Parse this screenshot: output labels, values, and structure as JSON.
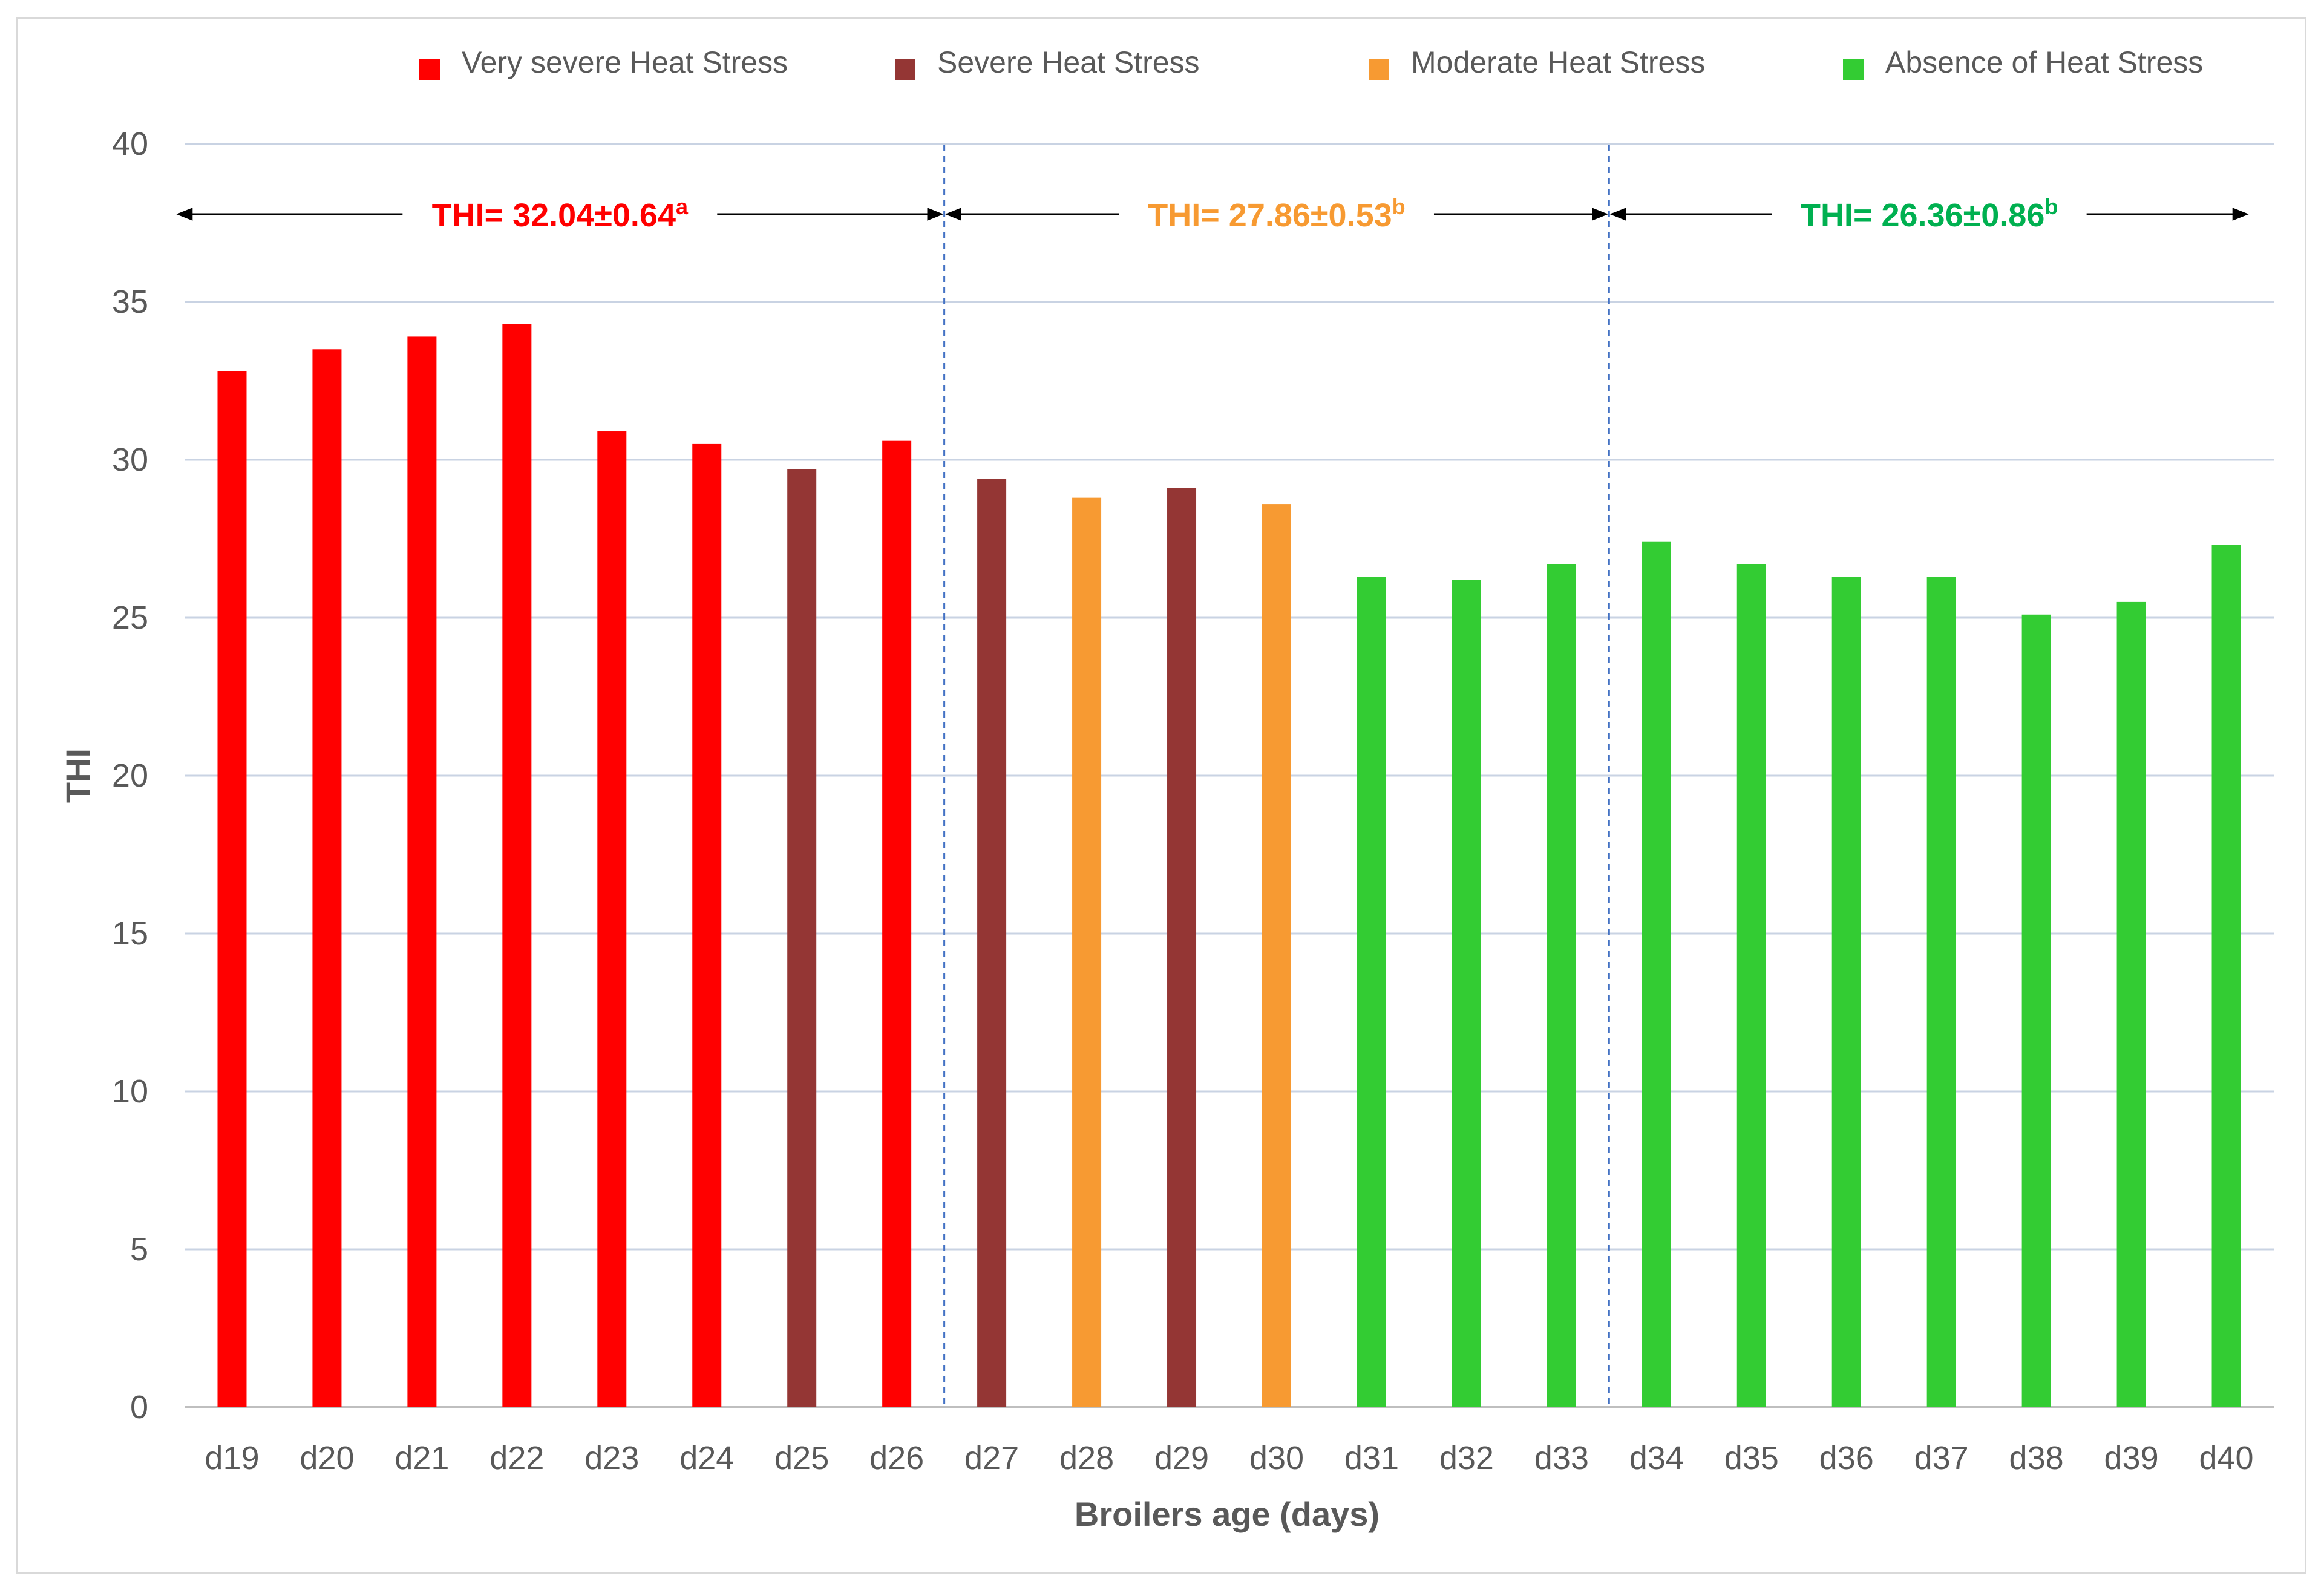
{
  "chart_data": {
    "type": "bar",
    "xlabel": "Broilers age (days)",
    "ylabel": "THI",
    "ylim": [
      0,
      40
    ],
    "yticks": [
      0,
      5,
      10,
      15,
      20,
      25,
      30,
      35,
      40
    ],
    "grid": true,
    "legend_position": "top",
    "categories": [
      "d19",
      "d20",
      "d21",
      "d22",
      "d23",
      "d24",
      "d25",
      "d26",
      "d27",
      "d28",
      "d29",
      "d30",
      "d31",
      "d32",
      "d33",
      "d34",
      "d35",
      "d36",
      "d37",
      "d38",
      "d39",
      "d40"
    ],
    "values": [
      32.8,
      33.5,
      33.9,
      34.3,
      30.9,
      30.5,
      29.7,
      30.6,
      29.4,
      28.8,
      29.1,
      28.6,
      26.3,
      26.2,
      26.7,
      27.4,
      26.7,
      26.3,
      26.3,
      25.1,
      25.5,
      27.3
    ],
    "bar_classes": [
      "very_severe",
      "very_severe",
      "very_severe",
      "very_severe",
      "very_severe",
      "very_severe",
      "severe",
      "very_severe",
      "severe",
      "moderate",
      "severe",
      "moderate",
      "absence",
      "absence",
      "absence",
      "absence",
      "absence",
      "absence",
      "absence",
      "absence",
      "absence",
      "absence"
    ],
    "legend": [
      {
        "key": "very_severe",
        "label": "Very severe Heat Stress",
        "color": "#ff0000"
      },
      {
        "key": "severe",
        "label": "Severe Heat Stress",
        "color": "#943634"
      },
      {
        "key": "moderate",
        "label": "Moderate Heat Stress",
        "color": "#f79a32"
      },
      {
        "key": "absence",
        "label": "Absence of Heat Stress",
        "color": "#33cc33"
      }
    ],
    "periods": [
      {
        "text": "THI= 32.04±0.64",
        "sup": "a",
        "color": "#ff0000",
        "start_index": 0,
        "end_index": 7
      },
      {
        "text": "THI= 27.86±0.53",
        "sup": "b",
        "color": "#f79a32",
        "start_index": 8,
        "end_index": 14
      },
      {
        "text": "THI= 26.36±0.86",
        "sup": "b",
        "color": "#00b050",
        "start_index": 15,
        "end_index": 21
      }
    ],
    "divider_color": "#4472c4",
    "gridline_color": "#c9d3e3",
    "tick_label_color": "#595959",
    "axis_title_color": "#595959"
  }
}
